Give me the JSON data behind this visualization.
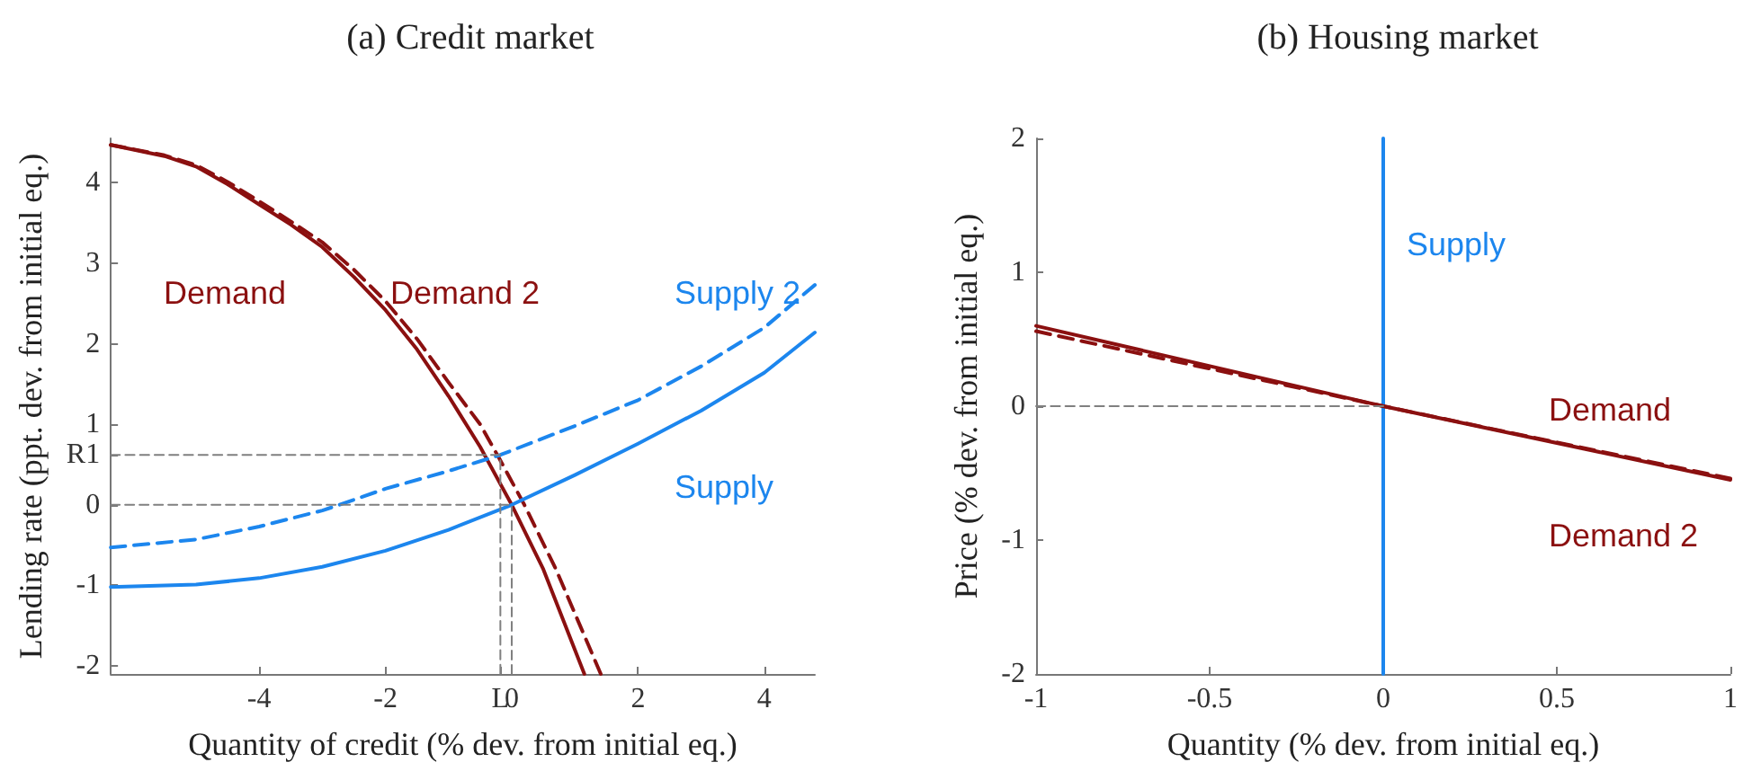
{
  "chart_data": [
    {
      "type": "line",
      "title": "(a) Credit market",
      "xlabel": "Quantity of credit (% dev. from initial eq.)",
      "ylabel": "Lending rate (ppt. dev. from initial eq.)",
      "xlim": [
        -6.35,
        4.8
      ],
      "ylim": [
        -2.1,
        4.55
      ],
      "xticks": [
        -4,
        -2,
        {
          "value": -0.18,
          "label": "L"
        },
        0,
        2,
        4
      ],
      "yticks": [
        -2,
        -1,
        0,
        {
          "value": 0.62,
          "label": "R1"
        },
        1,
        2,
        3,
        4
      ],
      "grid": false,
      "marker": "none",
      "series": [
        {
          "name": "Demand",
          "color": "#8b1010",
          "x": [
            -6.35,
            -5.5,
            -5,
            -4.5,
            -4,
            -3.5,
            -3,
            -2.5,
            -2,
            -1.5,
            -1,
            -0.5,
            0,
            0.5,
            1.15
          ],
          "values": [
            4.47,
            4.33,
            4.2,
            3.98,
            3.73,
            3.48,
            3.2,
            2.83,
            2.42,
            1.93,
            1.35,
            0.72,
            0,
            -0.8,
            -2.1
          ]
        },
        {
          "name": "Demand 2",
          "color": "#8b1010",
          "line_style": "dashed",
          "x": [
            -6.35,
            -5.5,
            -5,
            -4.5,
            -4,
            -3.5,
            -3,
            -2.5,
            -2,
            -1.5,
            -1,
            -0.5,
            -0.2,
            0.2,
            0.7,
            1.41
          ],
          "values": [
            4.47,
            4.34,
            4.22,
            4.01,
            3.77,
            3.52,
            3.26,
            2.92,
            2.53,
            2.06,
            1.52,
            1.0,
            0.58,
            0,
            -0.8,
            -2.1
          ]
        },
        {
          "name": "Supply",
          "color": "#1c86ee",
          "x": [
            -6.35,
            -5,
            -4,
            -3,
            -2,
            -1,
            0,
            1,
            2,
            3,
            4,
            4.8
          ],
          "values": [
            -1.02,
            -0.99,
            -0.91,
            -0.77,
            -0.57,
            -0.31,
            0,
            0.37,
            0.76,
            1.17,
            1.64,
            2.14
          ]
        },
        {
          "name": "Supply 2",
          "color": "#1c86ee",
          "line_style": "dashed",
          "x": [
            -6.35,
            -5,
            -4,
            -3,
            -2.73,
            -2,
            -1,
            -0.18,
            1,
            2,
            3,
            4,
            4.8
          ],
          "values": [
            -0.53,
            -0.43,
            -0.27,
            -0.07,
            0,
            0.2,
            0.42,
            0.62,
            0.98,
            1.3,
            1.72,
            2.2,
            2.73
          ]
        },
        {
          "color": "#808080",
          "line_style": "dashed",
          "x": [
            -6.35,
            -0.18,
            -0.18
          ],
          "values": [
            0.62,
            0.62,
            -2.1
          ]
        },
        {
          "color": "#808080",
          "line_style": "dashed",
          "x": [
            -6.35,
            0,
            0
          ],
          "values": [
            0,
            0,
            -2.1
          ]
        }
      ]
    },
    {
      "type": "line",
      "title": "(b) Housing market",
      "xlabel": "Quantity (% dev. from initial eq.)",
      "ylabel": "Price (% dev. from initial eq.)",
      "xlim": [
        -1,
        1
      ],
      "ylim": [
        -2,
        2
      ],
      "xticks": [
        -1,
        -0.5,
        0,
        0.5,
        1
      ],
      "yticks": [
        -2,
        -1,
        0,
        1,
        2
      ],
      "grid": false,
      "marker": "none",
      "series": [
        {
          "name": "Supply",
          "color": "#1c86ee",
          "x": [
            0,
            0
          ],
          "values": [
            -2,
            2
          ]
        },
        {
          "name": "Demand",
          "color": "#8b1010",
          "x": [
            -1,
            0,
            1
          ],
          "values": [
            0.6,
            0,
            -0.55
          ]
        },
        {
          "name": "Demand 2",
          "color": "#8b1010",
          "line_style": "dashed",
          "x": [
            -1,
            0,
            1
          ],
          "values": [
            0.56,
            0,
            -0.54
          ]
        },
        {
          "color": "#808080",
          "line_style": "dashed",
          "x": [
            -1,
            0
          ],
          "values": [
            0,
            0
          ]
        }
      ]
    }
  ]
}
